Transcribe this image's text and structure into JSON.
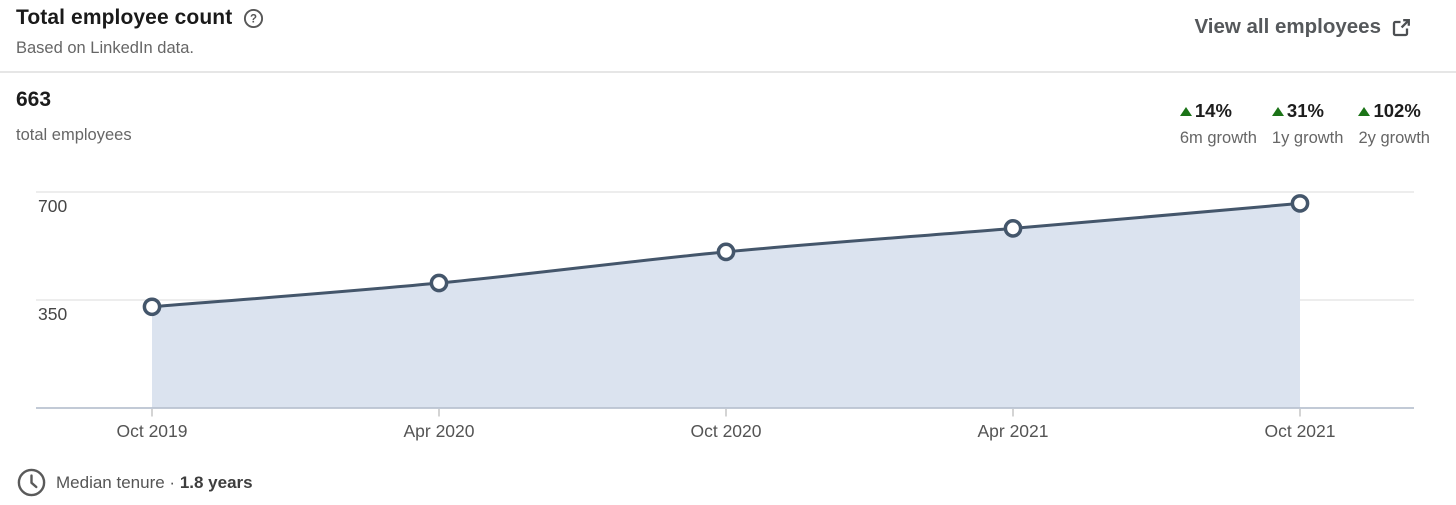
{
  "header": {
    "title": "Total employee count",
    "help_icon": "help-circle-icon",
    "subtitle": "Based on LinkedIn data.",
    "view_all_label": "View all employees"
  },
  "summary": {
    "value": "663",
    "label": "total employees",
    "growth_stats": [
      {
        "percent": "14%",
        "label": "6m growth",
        "direction": "up"
      },
      {
        "percent": "31%",
        "label": "1y growth",
        "direction": "up"
      },
      {
        "percent": "102%",
        "label": "2y growth",
        "direction": "up"
      }
    ],
    "positive_color": "#1b7317"
  },
  "chart_data": {
    "type": "area",
    "x": [
      "Oct 2019",
      "Apr 2020",
      "Oct 2020",
      "Apr 2021",
      "Oct 2021"
    ],
    "values": [
      328,
      405,
      506,
      582,
      663
    ],
    "title": "Total employee count",
    "xlabel": "",
    "ylabel": "",
    "ylim": [
      0,
      700
    ],
    "yticks": [
      350,
      700
    ],
    "grid": "horizontal",
    "legend": "none",
    "line_color": "#44566b",
    "fill_color": "#dbe3ef",
    "gridline_color": "#e2e2e2",
    "axis_color": "#b9c2d1",
    "tick_color": "#c9c9c9",
    "marker": "open-circle"
  },
  "footer": {
    "label": "Median tenure",
    "separator": "·",
    "value": "1.8 years"
  }
}
